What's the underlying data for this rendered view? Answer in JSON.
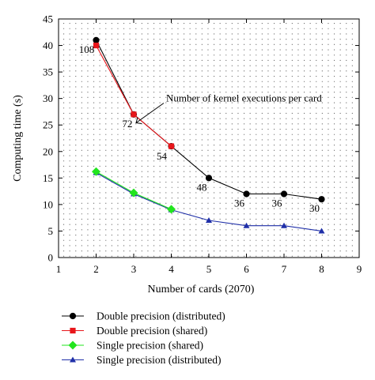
{
  "chart_data": {
    "type": "line",
    "xlabel": "Number of cards (2070)",
    "ylabel": "Computing time (s)",
    "xlim": [
      1,
      9
    ],
    "ylim": [
      0,
      45
    ],
    "xticks": [
      1,
      2,
      3,
      4,
      5,
      6,
      7,
      8,
      9
    ],
    "yticks": [
      0,
      5,
      10,
      15,
      20,
      25,
      30,
      35,
      40,
      45
    ],
    "grid": "dotted",
    "legend_position": "bottom",
    "series": [
      {
        "name": "Double precision (distributed)",
        "color": "#000000",
        "marker": "circle",
        "x": [
          2,
          3,
          4,
          5,
          6,
          7,
          8
        ],
        "y": [
          41,
          27,
          21,
          15,
          12,
          12,
          11
        ]
      },
      {
        "name": "Double precision (shared)",
        "color": "#e8161b",
        "marker": "square",
        "x": [
          2,
          3,
          4
        ],
        "y": [
          40,
          27,
          21
        ]
      },
      {
        "name": "Single precision (shared)",
        "color": "#22e51e",
        "marker": "diamond",
        "x": [
          2,
          3,
          4
        ],
        "y": [
          16.2,
          12.2,
          9.1
        ]
      },
      {
        "name": "Single precision (distributed)",
        "color": "#1f2fa8",
        "marker": "triangle",
        "x": [
          2,
          3,
          4,
          5,
          6,
          7,
          8
        ],
        "y": [
          16,
          12,
          9,
          7,
          6,
          6,
          5
        ]
      }
    ],
    "data_labels": [
      {
        "text": "108",
        "x": 2,
        "y": 41
      },
      {
        "text": "72",
        "x": 3,
        "y": 27
      },
      {
        "text": "54",
        "x": 4,
        "y": 21
      },
      {
        "text": "48",
        "x": 5,
        "y": 15
      },
      {
        "text": "36",
        "x": 6,
        "y": 12
      },
      {
        "text": "36",
        "x": 7,
        "y": 12
      },
      {
        "text": "30",
        "x": 8,
        "y": 11
      }
    ],
    "annotation": {
      "text": "Number of kernel executions per card",
      "target": {
        "x": 3,
        "y": 26
      }
    }
  }
}
